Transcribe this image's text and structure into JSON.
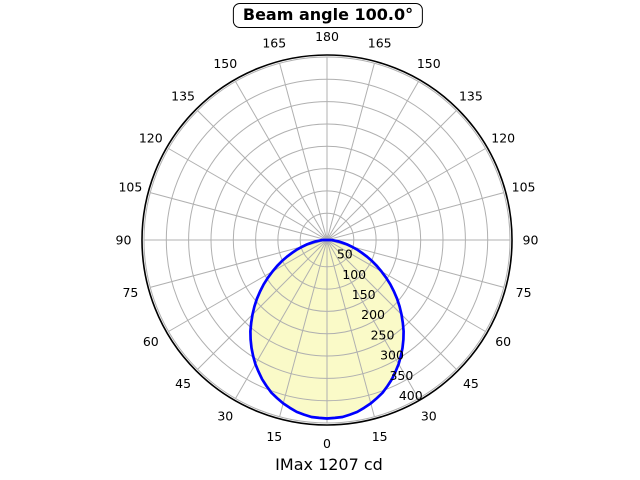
{
  "chart": {
    "title": "Beam angle 100.0°",
    "caption": "IMax 1207 cd"
  },
  "chart_data": {
    "type": "polar",
    "title": "Beam angle 100.0°",
    "caption": "IMax 1207 cd",
    "imax_cd": 1207,
    "beam_angle_deg": 100.0,
    "angle_tick_step_deg": 15,
    "angle_ticks_deg": [
      0,
      15,
      30,
      45,
      60,
      75,
      90,
      105,
      120,
      135,
      150,
      165,
      180
    ],
    "angle_tick_labels": [
      "0",
      "15",
      "30",
      "45",
      "60",
      "75",
      "90",
      "105",
      "120",
      "135",
      "150",
      "165",
      "180"
    ],
    "angle_ticks_mirrored": true,
    "r_ticks": [
      50,
      100,
      150,
      200,
      250,
      300,
      350,
      400
    ],
    "r_axis_min": -10,
    "r_axis_max": 400,
    "grid": true,
    "legend": "none",
    "series": [
      {
        "name": "luminous-intensity-distribution",
        "symmetric_about_0deg": true,
        "theta_step_deg": 5,
        "theta_abs_max_deg": 90,
        "values_from_0_to_90_deg": [
          390,
          388,
          381,
          369,
          354,
          334,
          311,
          285,
          257,
          226,
          195,
          163,
          131,
          101,
          72,
          47,
          25,
          8,
          0
        ],
        "value_at_half_beam_50deg": 195,
        "peak_value_at_0deg": 390
      }
    ],
    "colors": {
      "curve": "#0000ff",
      "fill": "#fafac8",
      "grid": "#b0b0b0",
      "axis": "#000000",
      "text": "#000000",
      "background": "#ffffff"
    }
  }
}
